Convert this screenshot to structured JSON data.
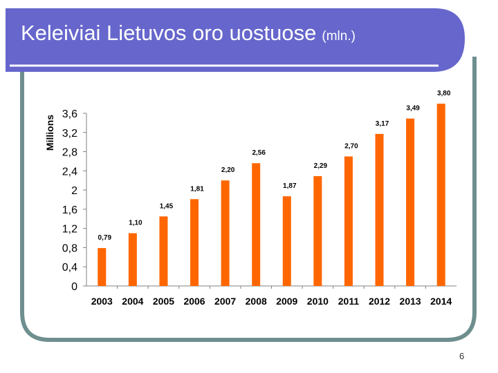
{
  "slide": {
    "title": "Keleiviai Lietuvos oro uostuose",
    "title_unit": "(mln.)",
    "page_number": "6",
    "header_color": "#6666cc",
    "border_color": "#6f8f8f"
  },
  "chart_data": {
    "type": "bar",
    "title": "",
    "xlabel": "",
    "ylabel": "Millions",
    "categories": [
      "2003",
      "2004",
      "2005",
      "2006",
      "2007",
      "2008",
      "2009",
      "2010",
      "2011",
      "2012",
      "2013",
      "2014"
    ],
    "values": [
      0.79,
      1.1,
      1.45,
      1.81,
      2.2,
      2.56,
      1.87,
      2.29,
      2.7,
      3.17,
      3.49,
      3.8
    ],
    "data_labels": [
      "0,79",
      "1,10",
      "1,45",
      "1,81",
      "2,20",
      "2,56",
      "1,87",
      "2,29",
      "2,70",
      "3,17",
      "3,49",
      "3,80"
    ],
    "y_ticks": [
      "0",
      "0,4",
      "0,8",
      "1,2",
      "1,6",
      "2",
      "2,4",
      "2,8",
      "3,2",
      "3,6"
    ],
    "y_tick_values": [
      0,
      0.4,
      0.8,
      1.2,
      1.6,
      2.0,
      2.4,
      2.8,
      3.2,
      3.6
    ],
    "ylim": [
      0,
      3.6
    ],
    "grid": false,
    "legend": "none",
    "bar_color": "#ff6600"
  }
}
